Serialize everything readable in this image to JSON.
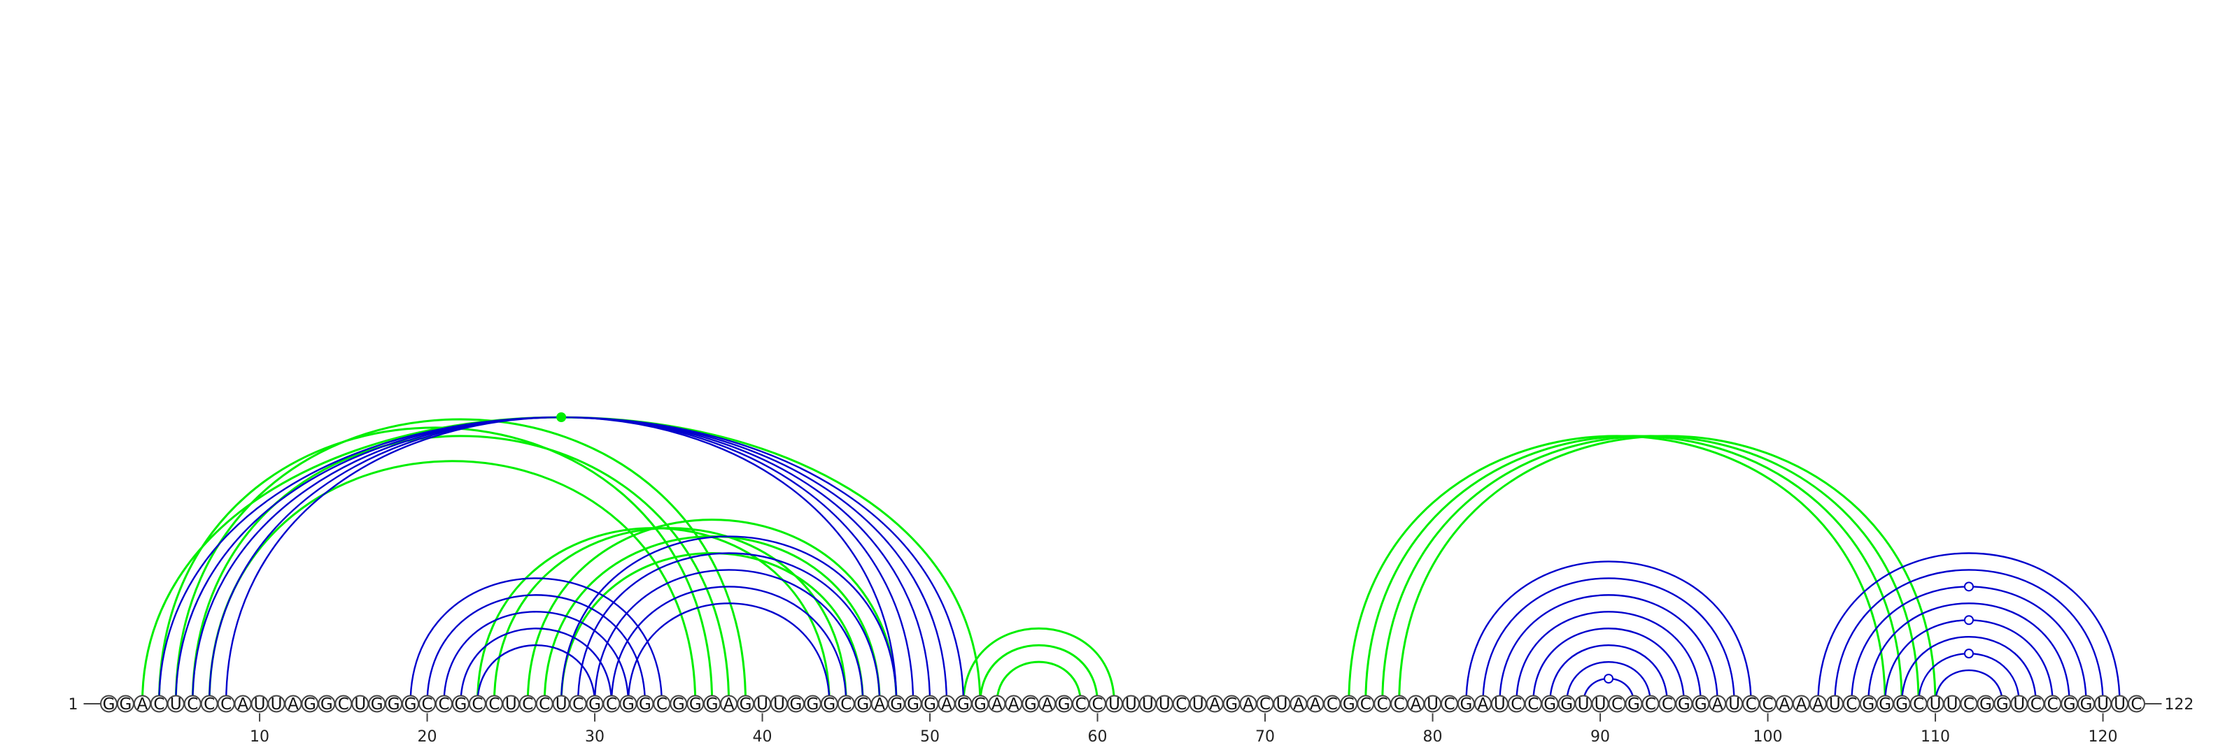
{
  "sequence": "GGACUCCCAUUAGGCUGGGCCGCCUCCUCGCGGCGGGAGUUGGGCGAGGGAGGAAGAGCCUUUUCUAGACUAACGCCCAUCGAUCCGGUUCGCCGGAUCCAAAUCGGGCUUCGGUCCGGUUC",
  "start_label": "1",
  "end_label": "122",
  "ticks": [
    10,
    20,
    30,
    40,
    50,
    60,
    70,
    80,
    90,
    100,
    110,
    120
  ],
  "colors": {
    "blue": "#0000cc",
    "green": "#00ee00"
  },
  "arcs": {
    "blue": [
      [
        4,
        52
      ],
      [
        5,
        51
      ],
      [
        6,
        50
      ],
      [
        7,
        49
      ],
      [
        8,
        48
      ],
      [
        19,
        34
      ],
      [
        20,
        33
      ],
      [
        21,
        32
      ],
      [
        22,
        31
      ],
      [
        23,
        30
      ],
      [
        28,
        48
      ],
      [
        29,
        47
      ],
      [
        30,
        46
      ],
      [
        31,
        45
      ],
      [
        32,
        44
      ],
      [
        82,
        99
      ],
      [
        83,
        98
      ],
      [
        84,
        97
      ],
      [
        85,
        96
      ],
      [
        86,
        95
      ],
      [
        87,
        94
      ],
      [
        88,
        93
      ],
      [
        89,
        92
      ],
      [
        103,
        121
      ],
      [
        104,
        120
      ],
      [
        105,
        119
      ],
      [
        106,
        118
      ],
      [
        107,
        117
      ],
      [
        108,
        116
      ],
      [
        109,
        115
      ],
      [
        110,
        114
      ]
    ],
    "green": [
      [
        3,
        53
      ],
      [
        4,
        37
      ],
      [
        5,
        39
      ],
      [
        6,
        38
      ],
      [
        7,
        36
      ],
      [
        23,
        44
      ],
      [
        24,
        45
      ],
      [
        26,
        48
      ],
      [
        27,
        47
      ],
      [
        28,
        46
      ],
      [
        52,
        61
      ],
      [
        53,
        60
      ],
      [
        54,
        59
      ],
      [
        75,
        107
      ],
      [
        76,
        108
      ],
      [
        77,
        109
      ],
      [
        78,
        110
      ]
    ]
  },
  "markers": {
    "green_dot_base": 28,
    "blue_circle_bases": [
      91,
      112,
      112,
      112
    ]
  }
}
